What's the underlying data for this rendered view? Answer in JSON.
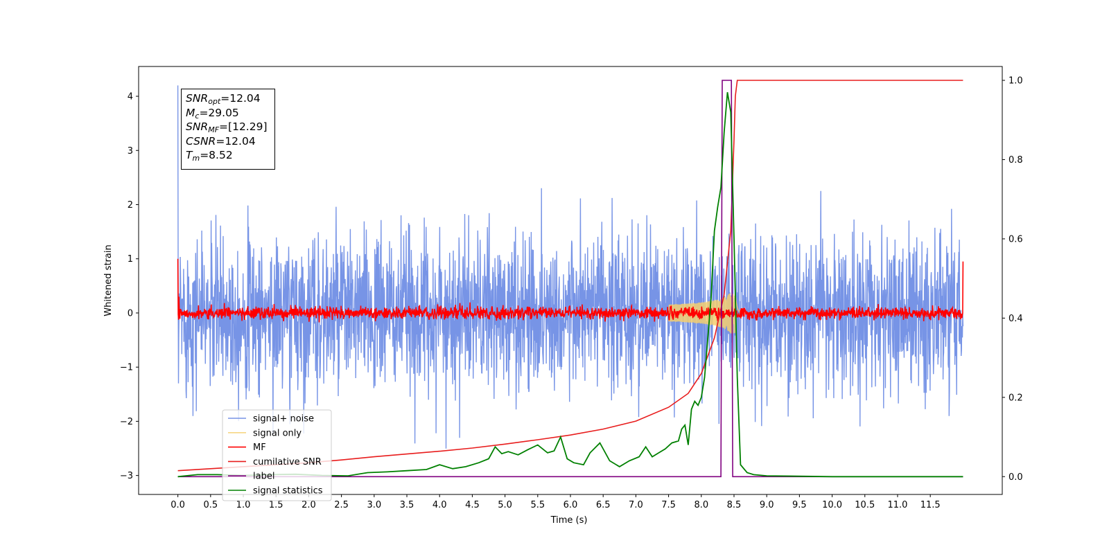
{
  "chart_data": {
    "type": "line",
    "xlabel": "Time (s)",
    "ylabel": "Whitened strain",
    "xlim": [
      -0.6,
      12.6
    ],
    "ylim": [
      -3.35,
      4.55
    ],
    "y2lim": [
      -0.045,
      1.035
    ],
    "x_ticks": [
      "0.0",
      "0.5",
      "1.0",
      "1.5",
      "2.0",
      "2.5",
      "3.0",
      "3.5",
      "4.0",
      "4.5",
      "5.0",
      "5.5",
      "6.0",
      "6.5",
      "7.0",
      "7.5",
      "8.0",
      "8.5",
      "9.0",
      "9.5",
      "10.0",
      "10.5",
      "11.0",
      "11.5"
    ],
    "y_ticks": [
      "−3",
      "−2",
      "−1",
      "0",
      "1",
      "2",
      "3",
      "4"
    ],
    "y2_ticks": [
      "0.0",
      "0.2",
      "0.4",
      "0.6",
      "0.8",
      "1.0"
    ],
    "annotation": {
      "snr_opt_base": "SNR",
      "snr_opt_sub": "opt",
      "snr_opt_value": "=12.04",
      "mc_base": "M",
      "mc_sub": "c",
      "mc_value": "=29.05",
      "snr_mf_base": "SNR",
      "snr_mf_sub": "MF",
      "snr_mf_value": "=[12.29]",
      "csnr_base": "CSNR",
      "csnr_value": "=12.04",
      "tm_base": "T",
      "tm_sub": "m",
      "tm_value": "=8.52"
    },
    "legend_position": "lower-left",
    "series": [
      {
        "name": "signal+ noise",
        "color": "#7794e6",
        "axis": "left",
        "kind": "noise",
        "x_range": [
          0,
          12
        ],
        "amplitude": 1.3,
        "peak": 4.2
      },
      {
        "name": "signal only",
        "color": "#f5cf6e",
        "axis": "left",
        "kind": "chirp",
        "merger_time": 8.52,
        "peak": 0.38
      },
      {
        "name": "MF",
        "color": "#ff0000",
        "axis": "left",
        "kind": "noise",
        "x_range": [
          0,
          12
        ],
        "amplitude": 0.12,
        "start_value": 1.0,
        "end_value": 0.95
      },
      {
        "name": "cumilative SNR",
        "color": "#e81c1c",
        "axis": "right",
        "x": [
          0.0,
          0.5,
          1.0,
          1.5,
          2.0,
          2.5,
          3.0,
          3.5,
          4.0,
          4.5,
          5.0,
          5.5,
          6.0,
          6.5,
          7.0,
          7.5,
          7.8,
          8.0,
          8.2,
          8.35,
          8.45,
          8.5,
          8.52,
          8.55,
          12.0
        ],
        "y": [
          0.015,
          0.02,
          0.025,
          0.03,
          0.035,
          0.042,
          0.05,
          0.057,
          0.064,
          0.072,
          0.082,
          0.093,
          0.105,
          0.12,
          0.14,
          0.175,
          0.21,
          0.26,
          0.35,
          0.46,
          0.62,
          0.85,
          0.96,
          1.0,
          1.0
        ]
      },
      {
        "name": "label",
        "color": "#800080",
        "axis": "right",
        "x": [
          0.0,
          8.3,
          8.32,
          8.46,
          8.48,
          12.0
        ],
        "y": [
          0.0,
          0.0,
          1.0,
          1.0,
          0.0,
          0.0
        ]
      },
      {
        "name": "signal statistics",
        "color": "#008000",
        "axis": "right",
        "x": [
          0.0,
          0.3,
          0.6,
          1.0,
          1.4,
          1.8,
          2.2,
          2.6,
          2.9,
          3.2,
          3.5,
          3.8,
          4.0,
          4.2,
          4.4,
          4.6,
          4.75,
          4.85,
          4.95,
          5.05,
          5.2,
          5.35,
          5.5,
          5.65,
          5.75,
          5.85,
          5.95,
          6.05,
          6.2,
          6.3,
          6.45,
          6.6,
          6.75,
          6.9,
          7.05,
          7.15,
          7.25,
          7.35,
          7.45,
          7.55,
          7.65,
          7.7,
          7.75,
          7.8,
          7.85,
          7.9,
          7.95,
          8.0,
          8.05,
          8.1,
          8.15,
          8.2,
          8.25,
          8.3,
          8.35,
          8.4,
          8.45,
          8.5,
          8.55,
          8.6,
          8.7,
          8.8,
          9.0,
          10.0,
          11.0,
          12.0
        ],
        "y": [
          0.0,
          0.005,
          0.005,
          0.003,
          0.005,
          0.006,
          0.003,
          0.002,
          0.01,
          0.012,
          0.015,
          0.018,
          0.03,
          0.02,
          0.025,
          0.035,
          0.045,
          0.075,
          0.058,
          0.063,
          0.055,
          0.068,
          0.08,
          0.06,
          0.065,
          0.1,
          0.045,
          0.035,
          0.03,
          0.06,
          0.085,
          0.04,
          0.025,
          0.04,
          0.05,
          0.075,
          0.05,
          0.06,
          0.07,
          0.085,
          0.09,
          0.12,
          0.13,
          0.08,
          0.17,
          0.19,
          0.18,
          0.2,
          0.25,
          0.35,
          0.45,
          0.62,
          0.68,
          0.73,
          0.87,
          0.97,
          0.92,
          0.6,
          0.25,
          0.03,
          0.01,
          0.005,
          0.002,
          0.0,
          0.0,
          0.0
        ]
      }
    ]
  }
}
